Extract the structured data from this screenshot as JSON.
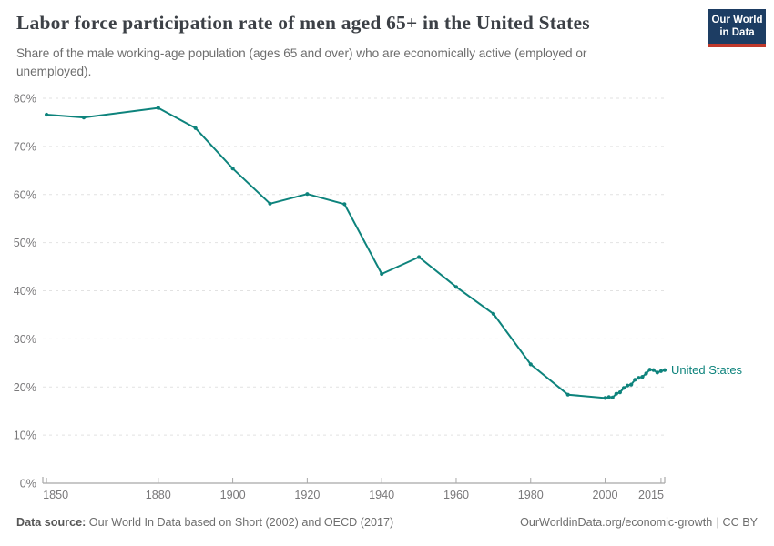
{
  "header": {
    "title": "Labor force participation rate of men aged 65+ in the United States",
    "logo": {
      "line1": "Our World",
      "line2": "in Data"
    }
  },
  "subtitle": "Share of the male working-age population (ages 65 and over) who are economically active (employed or unemployed).",
  "chart_data": {
    "type": "line",
    "title": "Labor force participation rate of men aged 65+ in the United States",
    "xlabel": "",
    "ylabel": "",
    "xlim": [
      1849,
      2016
    ],
    "ylim": [
      0,
      80
    ],
    "grid": "horizontal-dashed",
    "legend": "inline-end-label",
    "x_ticks": [
      1850,
      1880,
      1900,
      1920,
      1940,
      1960,
      1980,
      2000,
      2015
    ],
    "x_tick_labels": [
      "1850",
      "1880",
      "1900",
      "1920",
      "1940",
      "1960",
      "1980",
      "2000",
      "2015"
    ],
    "y_ticks": [
      0,
      10,
      20,
      30,
      40,
      50,
      60,
      70,
      80
    ],
    "y_tick_labels": [
      "0%",
      "10%",
      "20%",
      "30%",
      "40%",
      "50%",
      "60%",
      "70%",
      "80%"
    ],
    "series": [
      {
        "name": "United States",
        "color": "#0d837c",
        "points": [
          [
            1850,
            76.6
          ],
          [
            1860,
            76.0
          ],
          [
            1880,
            78.0
          ],
          [
            1890,
            73.8
          ],
          [
            1900,
            65.4
          ],
          [
            1910,
            58.1
          ],
          [
            1920,
            60.1
          ],
          [
            1930,
            58.0
          ],
          [
            1940,
            43.5
          ],
          [
            1950,
            47.0
          ],
          [
            1960,
            40.8
          ],
          [
            1970,
            35.2
          ],
          [
            1980,
            24.7
          ],
          [
            1990,
            18.4
          ],
          [
            2000,
            17.7
          ],
          [
            2001,
            17.9
          ],
          [
            2002,
            17.8
          ],
          [
            2003,
            18.6
          ],
          [
            2004,
            18.9
          ],
          [
            2005,
            19.8
          ],
          [
            2006,
            20.3
          ],
          [
            2007,
            20.5
          ],
          [
            2008,
            21.5
          ],
          [
            2009,
            21.9
          ],
          [
            2010,
            22.1
          ],
          [
            2011,
            22.8
          ],
          [
            2012,
            23.6
          ],
          [
            2013,
            23.5
          ],
          [
            2014,
            23.0
          ],
          [
            2015,
            23.3
          ],
          [
            2016,
            23.5
          ]
        ]
      }
    ]
  },
  "footer": {
    "source_label": "Data source:",
    "source_text": " Our World In Data based on Short (2002) and OECD (2017)",
    "link": "OurWorldinData.org/economic-growth",
    "separator": "|",
    "license": "CC BY"
  },
  "colors": {
    "accent": "#0d837c",
    "logo_bg": "#1d3d63",
    "logo_accent": "#c0392b",
    "grid": "#e2e2e2",
    "axis": "#a8a8a8",
    "tick_label": "#79787a",
    "title": "#3c4046",
    "subtitle": "#6d6d6d"
  }
}
